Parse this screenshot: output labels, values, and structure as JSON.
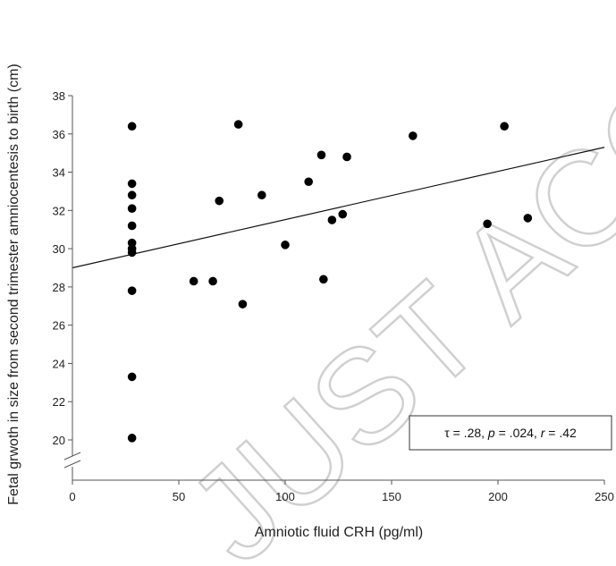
{
  "chart_data": {
    "type": "scatter",
    "xlabel": "Amniotic fluid CRH (pg/ml)",
    "ylabel": "Fetal grwoth in size from second trimester amniocentesis to birth (cm)",
    "xlim": [
      0,
      250
    ],
    "ylim": [
      19,
      38
    ],
    "x_ticks": [
      0,
      50,
      100,
      150,
      200,
      250
    ],
    "y_ticks": [
      20,
      22,
      24,
      26,
      28,
      30,
      32,
      34,
      36,
      38
    ],
    "axis_break": "y",
    "grid": false,
    "watermark": "JUST ACCEPTED",
    "annotation": {
      "tau": "τ = .28, ",
      "p": "p",
      "p_val": " = .024, ",
      "r": "r",
      "r_val": " = .42"
    },
    "trendline": {
      "x": [
        0,
        250
      ],
      "y": [
        29.0,
        35.3
      ]
    },
    "points": [
      {
        "x": 28,
        "y": 36.4
      },
      {
        "x": 28,
        "y": 33.4
      },
      {
        "x": 28,
        "y": 32.8
      },
      {
        "x": 28,
        "y": 32.1
      },
      {
        "x": 28,
        "y": 31.2
      },
      {
        "x": 28,
        "y": 30.3
      },
      {
        "x": 28,
        "y": 30.0
      },
      {
        "x": 28,
        "y": 29.8
      },
      {
        "x": 28,
        "y": 27.8
      },
      {
        "x": 28,
        "y": 23.3
      },
      {
        "x": 28,
        "y": 20.1
      },
      {
        "x": 57,
        "y": 28.3
      },
      {
        "x": 66,
        "y": 28.3
      },
      {
        "x": 69,
        "y": 32.5
      },
      {
        "x": 78,
        "y": 36.5
      },
      {
        "x": 80,
        "y": 27.1
      },
      {
        "x": 89,
        "y": 32.8
      },
      {
        "x": 100,
        "y": 30.2
      },
      {
        "x": 111,
        "y": 33.5
      },
      {
        "x": 117,
        "y": 34.9
      },
      {
        "x": 118,
        "y": 28.4
      },
      {
        "x": 122,
        "y": 31.5
      },
      {
        "x": 127,
        "y": 31.8
      },
      {
        "x": 129,
        "y": 34.8
      },
      {
        "x": 160,
        "y": 35.9
      },
      {
        "x": 195,
        "y": 31.3
      },
      {
        "x": 203,
        "y": 36.4
      },
      {
        "x": 214,
        "y": 31.6
      }
    ]
  }
}
